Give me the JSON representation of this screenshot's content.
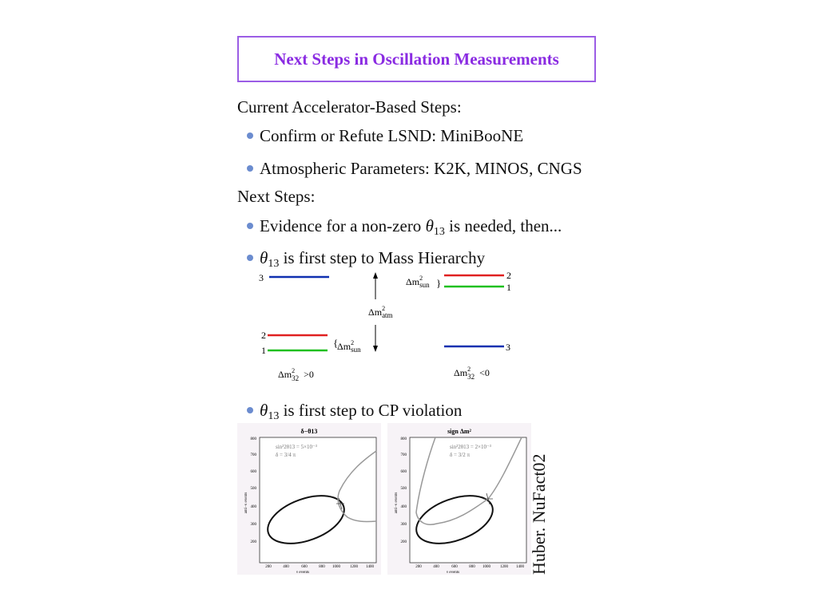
{
  "title": "Next Steps in Oscillation Measurements",
  "lines": {
    "current_heading": "Current Accelerator-Based Steps:",
    "lsnd": "Confirm or Refute LSND: MiniBooNE",
    "atm": "Atmospheric Parameters: K2K, MINOS, CNGS",
    "next_heading": "Next Steps:",
    "evidence_pre": "Evidence for a non-zero ",
    "evidence_post": " is needed, then...",
    "theta": "θ",
    "theta_sub": "13",
    "mass_post": " is first step to Mass Hierarchy",
    "cp_post": " is first step to CP violation"
  },
  "hierarchy": {
    "normal": {
      "top": "3",
      "mid": "2",
      "bot": "1",
      "delta_sun": "Δm",
      "sun_sub": "sun",
      "label": "Δm",
      "label_sub": "32",
      "label_rel": ">0"
    },
    "inverted": {
      "top": "2",
      "mid": "1",
      "bot": "3",
      "delta_sun": "Δm",
      "sun_sub": "sun",
      "label": "Δm",
      "label_sub": "32",
      "label_rel": "<0"
    },
    "atm": "Δm",
    "atm_sub": "atm",
    "colors": {
      "level3": "#1030b0",
      "level2": "#e02020",
      "level1": "#20c020"
    }
  },
  "plots": [
    {
      "title": "δ−θ13",
      "legend1": "sin²2θ13 = 5×10⁻³",
      "legend2": "δ = 3/4 π",
      "ylabel": "anti−ν events",
      "xlabel": "ν events",
      "xticks": [
        "200",
        "400",
        "600",
        "800",
        "1000",
        "1200",
        "1400"
      ],
      "yticks": [
        "800",
        "700",
        "600",
        "500",
        "400",
        "300",
        "200"
      ]
    },
    {
      "title": "sign Δm²",
      "legend1": "sin²2θ13 = 2×10⁻³",
      "legend2": "δ = 3/2 π",
      "ylabel": "anti−ν events",
      "xlabel": "ν events",
      "xticks": [
        "200",
        "400",
        "600",
        "800",
        "1000",
        "1200",
        "1400"
      ],
      "yticks": [
        "800",
        "700",
        "600",
        "500",
        "400",
        "300",
        "200"
      ]
    }
  ],
  "credit": "Huber. NuFact02"
}
